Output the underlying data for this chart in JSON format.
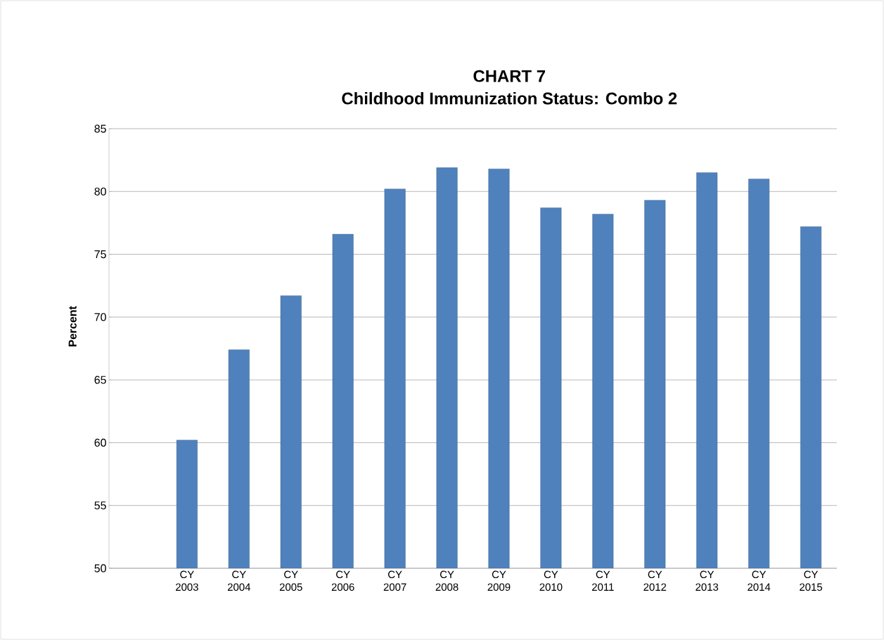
{
  "chart_data": {
    "type": "bar",
    "title": "CHART 7",
    "subtitle": "Childhood Immunization Status:  Combo 2",
    "ylabel": "Percent",
    "categories": [
      null,
      "CY 2003",
      "CY 2004",
      "CY 2005",
      "CY 2006",
      "CY 2007",
      "CY 2008",
      "CY 2009",
      "CY 2010",
      "CY 2011",
      "CY 2012",
      "CY 2013",
      "CY 2014",
      "CY 2015"
    ],
    "values": [
      null,
      60.2,
      67.4,
      71.7,
      76.6,
      80.2,
      81.9,
      81.8,
      78.7,
      78.2,
      79.3,
      81.5,
      81.0,
      77.2
    ],
    "color": "#4f81bd",
    "ylim": [
      50,
      85
    ],
    "yticks": [
      50,
      55,
      60,
      65,
      70,
      75,
      80,
      85
    ],
    "grid": "y"
  }
}
